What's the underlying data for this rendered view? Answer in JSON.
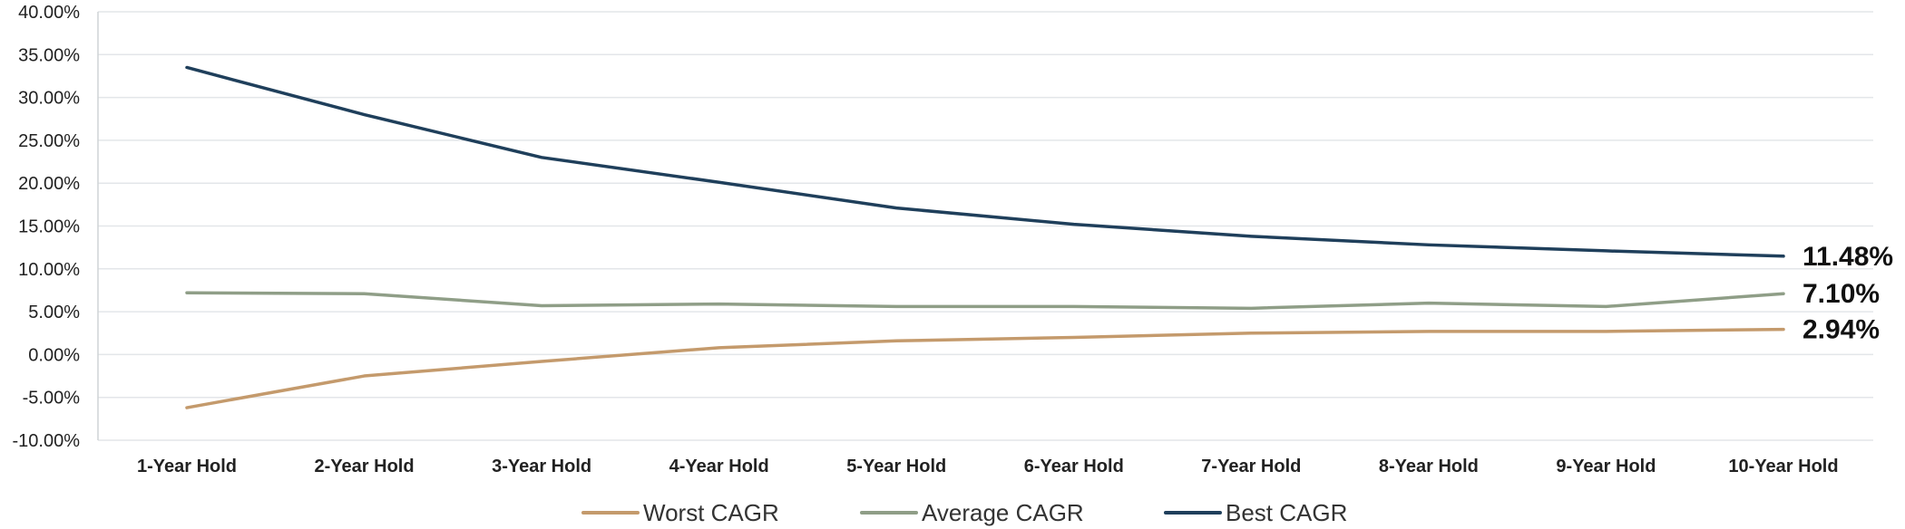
{
  "chart_data": {
    "type": "line",
    "categories": [
      "1-Year Hold",
      "2-Year Hold",
      "3-Year Hold",
      "4-Year Hold",
      "5-Year Hold",
      "6-Year Hold",
      "7-Year Hold",
      "8-Year Hold",
      "9-Year Hold",
      "10-Year Hold"
    ],
    "series": [
      {
        "name": "Worst CAGR",
        "color": "#c49a6c",
        "values": [
          -6.2,
          -2.5,
          -0.8,
          0.8,
          1.6,
          2.0,
          2.5,
          2.7,
          2.7,
          2.94
        ]
      },
      {
        "name": "Average CAGR",
        "color": "#8f9e87",
        "values": [
          7.2,
          7.1,
          5.7,
          5.9,
          5.6,
          5.6,
          5.4,
          6.0,
          5.6,
          7.1
        ]
      },
      {
        "name": "Best CAGR",
        "color": "#1f3f5b",
        "values": [
          33.5,
          28.0,
          23.0,
          20.1,
          17.1,
          15.2,
          13.8,
          12.8,
          12.1,
          11.48
        ]
      }
    ],
    "end_labels": [
      "2.94%",
      "7.10%",
      "11.48%"
    ],
    "y_tick_labels": [
      "40.00%",
      "35.00%",
      "30.00%",
      "25.00%",
      "20.00%",
      "15.00%",
      "10.00%",
      "5.00%",
      "0.00%",
      "-5.00%",
      "-10.00%"
    ],
    "ylim": [
      -10,
      40
    ],
    "ystep": 5,
    "grid": true,
    "legend_position": "bottom",
    "title": "",
    "xlabel": "",
    "ylabel": ""
  }
}
